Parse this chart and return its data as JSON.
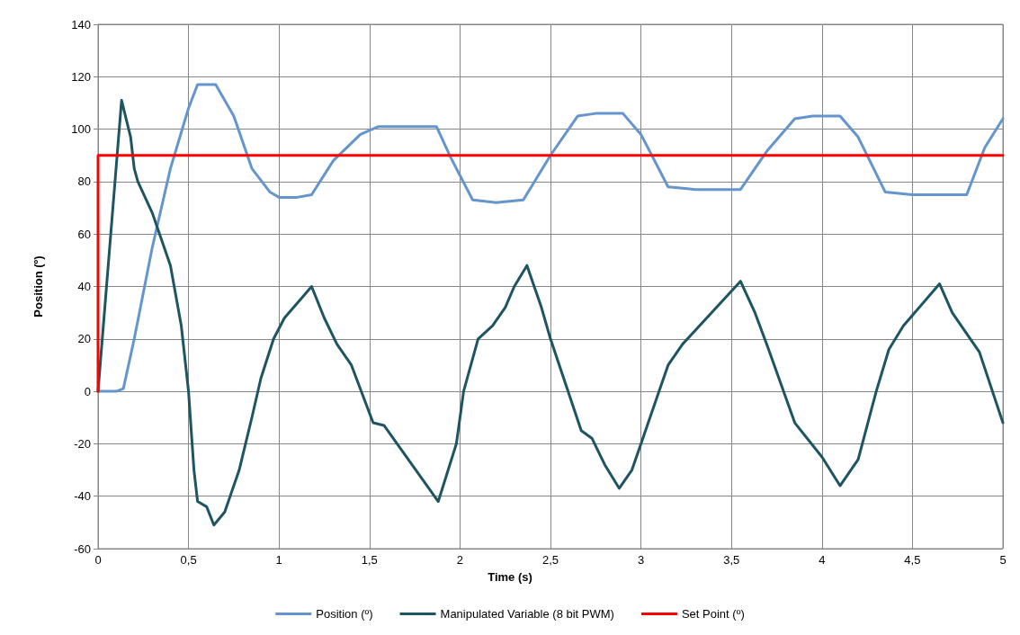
{
  "chart_data": {
    "type": "line",
    "xlabel": "Time (s)",
    "ylabel": "Position (º)",
    "xlim": [
      0,
      5
    ],
    "xticks": [
      0,
      {
        "value": 0.5,
        "label": "0,5"
      },
      1,
      {
        "value": 1.5,
        "label": "1,5"
      },
      2,
      {
        "value": 2.5,
        "label": "2,5"
      },
      3,
      {
        "value": 3.5,
        "label": "3,5"
      },
      4,
      {
        "value": 4.5,
        "label": "4,5"
      },
      5
    ],
    "ylim": [
      -60,
      140
    ],
    "yticks": [
      -60,
      -40,
      -20,
      0,
      20,
      40,
      60,
      80,
      100,
      120,
      140
    ],
    "grid": true,
    "legend": "bottom",
    "marker": "none",
    "line_style": "solid",
    "series": [
      {
        "name": "Position (º)",
        "color": "#6495cd",
        "x": [
          0,
          0.1,
          0.14,
          0.2,
          0.3,
          0.4,
          0.5,
          0.55,
          0.65,
          0.75,
          0.85,
          0.95,
          1.0,
          1.1,
          1.18,
          1.3,
          1.45,
          1.55,
          1.7,
          1.87,
          1.95,
          2.07,
          2.2,
          2.35,
          2.5,
          2.65,
          2.75,
          2.9,
          3.0,
          3.15,
          3.3,
          3.55,
          3.7,
          3.85,
          3.95,
          4.1,
          4.2,
          4.35,
          4.5,
          4.8,
          4.9,
          5.0
        ],
        "values": [
          0,
          0,
          1,
          20,
          55,
          85,
          108,
          117,
          117,
          105,
          85,
          76,
          74,
          74,
          75,
          88,
          98,
          101,
          101,
          101,
          89,
          73,
          72,
          73,
          90,
          105,
          106,
          106,
          98,
          78,
          77,
          77,
          92,
          104,
          105,
          105,
          97,
          76,
          75,
          75,
          93,
          104
        ]
      },
      {
        "name": "Manipulated Variable (8 bit PWM)",
        "color": "#1f5461",
        "x": [
          0,
          0.13,
          0.18,
          0.2,
          0.22,
          0.3,
          0.4,
          0.46,
          0.5,
          0.53,
          0.55,
          0.6,
          0.64,
          0.7,
          0.78,
          0.85,
          0.9,
          0.97,
          1.03,
          1.13,
          1.18,
          1.25,
          1.32,
          1.4,
          1.52,
          1.58,
          1.88,
          1.98,
          2.02,
          2.1,
          2.18,
          2.25,
          2.3,
          2.37,
          2.45,
          2.5,
          2.67,
          2.73,
          2.8,
          2.88,
          2.95,
          3.0,
          3.1,
          3.15,
          3.23,
          3.55,
          3.63,
          3.7,
          3.85,
          4.0,
          4.1,
          4.2,
          4.3,
          4.37,
          4.45,
          4.65,
          4.72,
          4.82,
          4.87,
          5.0
        ],
        "values": [
          0,
          111,
          97,
          85,
          80,
          68,
          48,
          25,
          0,
          -30,
          -42,
          -44,
          -51,
          -46,
          -30,
          -10,
          5,
          20,
          28,
          36,
          40,
          28,
          18,
          10,
          -12,
          -13,
          -42,
          -20,
          0,
          20,
          25,
          32,
          40,
          48,
          32,
          20,
          -15,
          -18,
          -28,
          -37,
          -30,
          -20,
          0,
          10,
          18,
          42,
          30,
          17,
          -12,
          -25,
          -36,
          -26,
          0,
          16,
          25,
          41,
          30,
          20,
          15,
          -12
        ]
      },
      {
        "name": "Set Point (º)",
        "color": "#ff0000",
        "x": [
          0,
          0,
          5
        ],
        "values": [
          0,
          90,
          90
        ]
      }
    ]
  }
}
